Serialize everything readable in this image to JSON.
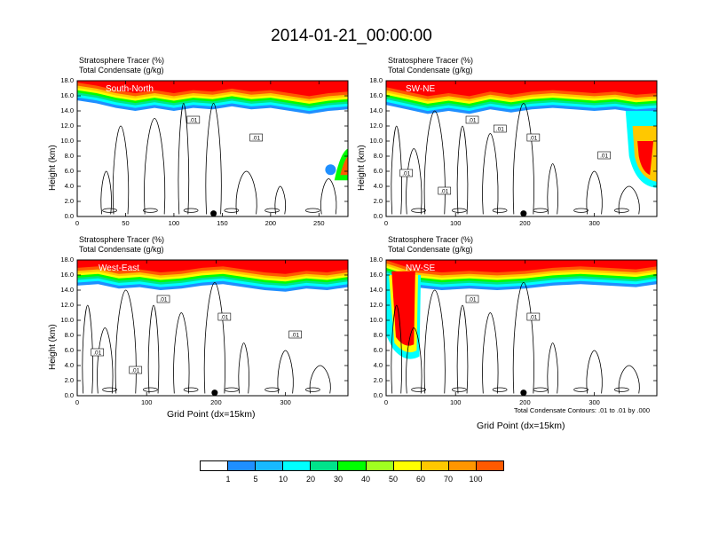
{
  "title": "2014-01-21_00:00:00",
  "colors": {
    "levels": [
      "#ffffff",
      "#1f8fff",
      "#18b9ff",
      "#00ffff",
      "#00e38b",
      "#00ff00",
      "#a0ff20",
      "#ffff00",
      "#ffc800",
      "#ff9600",
      "#ff5a00",
      "#ff0000"
    ]
  },
  "colorbar": {
    "labels": [
      "1",
      "5",
      "10",
      "20",
      "30",
      "40",
      "50",
      "60",
      "70",
      "100"
    ]
  },
  "footnote": "Total Condensate Contours: .01 to .01 by .000",
  "chart_data": [
    {
      "type": "heatmap",
      "panel": "South-North",
      "header_line1": "Stratosphere Tracer   (%)",
      "header_line2": "Total Condensate   (g/kg)",
      "ylabel": "Height (km)",
      "xlabel": "",
      "xlim": [
        0,
        280
      ],
      "ylim": [
        0,
        18
      ],
      "xticks": [
        "0",
        "50",
        "100",
        "150",
        "200",
        "250"
      ],
      "yticks": [
        "0.0",
        "2.0",
        "4.0",
        "6.0",
        "8.0",
        "10.0",
        "12.0",
        "14.0",
        "16.0",
        "18.0"
      ],
      "contour_labels": [
        ".01",
        ".01"
      ],
      "marker_x": 141,
      "profile": [
        [
          0,
          16.0
        ],
        [
          20,
          15.6
        ],
        [
          40,
          15.0
        ],
        [
          60,
          14.6
        ],
        [
          80,
          15.0
        ],
        [
          100,
          14.6
        ],
        [
          120,
          15.0
        ],
        [
          140,
          14.8
        ],
        [
          160,
          15.2
        ],
        [
          180,
          14.8
        ],
        [
          200,
          15.0
        ],
        [
          220,
          14.6
        ],
        [
          240,
          14.2
        ],
        [
          260,
          14.6
        ],
        [
          280,
          14.8
        ]
      ]
    },
    {
      "type": "heatmap",
      "panel": "SW-NE",
      "header_line1": "Stratosphere Tracer   (%)",
      "header_line2": "Total Condensate   (g/kg)",
      "ylabel": "Height (km)",
      "xlabel": "",
      "xlim": [
        0,
        390
      ],
      "ylim": [
        0,
        18
      ],
      "xticks": [
        "0",
        "100",
        "200",
        "300"
      ],
      "yticks": [
        "0.0",
        "2.0",
        "4.0",
        "6.0",
        "8.0",
        "10.0",
        "12.0",
        "14.0",
        "16.0",
        "18.0"
      ],
      "contour_labels": [
        ".01",
        ".01",
        ".01",
        ".01",
        ".01",
        ".01"
      ],
      "marker_x": 198,
      "profile": [
        [
          0,
          15.4
        ],
        [
          30,
          14.8
        ],
        [
          60,
          14.2
        ],
        [
          90,
          14.6
        ],
        [
          120,
          14.2
        ],
        [
          150,
          14.8
        ],
        [
          180,
          14.4
        ],
        [
          210,
          14.8
        ],
        [
          240,
          15.0
        ],
        [
          270,
          14.8
        ],
        [
          300,
          14.6
        ],
        [
          330,
          14.8
        ],
        [
          360,
          14.4
        ],
        [
          390,
          14.6
        ]
      ]
    },
    {
      "type": "heatmap",
      "panel": "West-East",
      "header_line1": "Stratosphere Tracer   (%)",
      "header_line2": "Total Condensate   (g/kg)",
      "ylabel": "Height (km)",
      "xlabel": "Grid Point (dx=15km)",
      "xlim": [
        0,
        390
      ],
      "ylim": [
        0,
        18
      ],
      "xticks": [
        "0",
        "100",
        "200",
        "300"
      ],
      "yticks": [
        "0.0",
        "2.0",
        "4.0",
        "6.0",
        "8.0",
        "10.0",
        "12.0",
        "14.0",
        "16.0",
        "18.0"
      ],
      "contour_labels": [
        ".01",
        ".01",
        ".01",
        ".01",
        ".01"
      ],
      "marker_x": 198,
      "profile": [
        [
          0,
          15.2
        ],
        [
          30,
          15.4
        ],
        [
          60,
          14.8
        ],
        [
          90,
          15.0
        ],
        [
          120,
          14.6
        ],
        [
          150,
          14.8
        ],
        [
          180,
          15.2
        ],
        [
          210,
          15.4
        ],
        [
          240,
          15.0
        ],
        [
          270,
          14.6
        ],
        [
          300,
          14.4
        ],
        [
          330,
          14.8
        ],
        [
          360,
          14.6
        ],
        [
          390,
          15.0
        ]
      ]
    },
    {
      "type": "heatmap",
      "panel": "NW-SE",
      "header_line1": "Stratosphere Tracer   (%)",
      "header_line2": "Total Condensate   (g/kg)",
      "ylabel": "",
      "xlabel": "Grid Point (dx=15km)",
      "xlim": [
        0,
        390
      ],
      "ylim": [
        0,
        18
      ],
      "xticks": [
        "0",
        "100",
        "200",
        "300"
      ],
      "yticks": [
        "0.0",
        "2.0",
        "4.0",
        "6.0",
        "8.0",
        "10.0",
        "12.0",
        "14.0",
        "16.0",
        "18.0"
      ],
      "contour_labels": [
        ".01",
        ".01"
      ],
      "marker_x": 198,
      "profile": [
        [
          0,
          16.2
        ],
        [
          40,
          15.0
        ],
        [
          80,
          14.6
        ],
        [
          120,
          14.8
        ],
        [
          160,
          14.6
        ],
        [
          200,
          14.8
        ],
        [
          240,
          15.2
        ],
        [
          280,
          15.4
        ],
        [
          320,
          15.2
        ],
        [
          360,
          15.0
        ],
        [
          390,
          15.4
        ]
      ]
    }
  ]
}
